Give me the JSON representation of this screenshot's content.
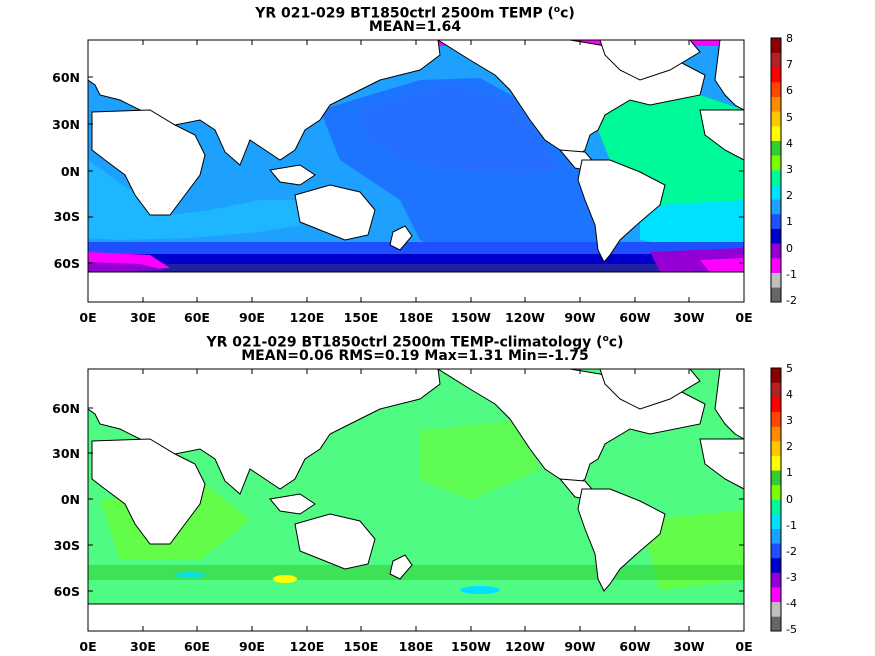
{
  "panels": [
    {
      "id": "top",
      "title_line1_prefix": "YR 021-029 BT1850ctrl 2500m TEMP (",
      "title_unit_sup": "o",
      "title_line1_suffix": "c)",
      "title_line2": "MEAN=1.64",
      "colorbar_labels": [
        "8",
        "7",
        "6",
        "5",
        "4",
        "3",
        "2",
        "1",
        "0",
        "-1",
        "-2"
      ]
    },
    {
      "id": "bottom",
      "title_line1_prefix": "YR 021-029 BT1850ctrl 2500m TEMP-climatology (",
      "title_unit_sup": "o",
      "title_line1_suffix": "c)",
      "title_line2": "MEAN=0.06   RMS=0.19   Max=1.31   Min=-1.75",
      "colorbar_labels": [
        "5",
        "4",
        "3",
        "2",
        "1",
        "0",
        "-1",
        "-2",
        "-3",
        "-4",
        "-5"
      ]
    }
  ],
  "lat_labels": [
    "60N",
    "30N",
    "0N",
    "30S",
    "60S"
  ],
  "lon_labels": [
    "0E",
    "30E",
    "60E",
    "90E",
    "120E",
    "150E",
    "180E",
    "150W",
    "120W",
    "90W",
    "60W",
    "30W",
    "0E"
  ],
  "colors": {
    "colorbar": [
      "#666666",
      "#bfbfbf",
      "#ff00ff",
      "#9400d3",
      "#0000cd",
      "#1e50ff",
      "#1ea0ff",
      "#00e0ff",
      "#00fa9a",
      "#7cfc00",
      "#32cd32",
      "#ffff00",
      "#ffc800",
      "#ff8c00",
      "#ff4500",
      "#ff0000",
      "#b22222",
      "#8b0000"
    ],
    "land": "#ffffff",
    "coast": "#000000"
  }
}
